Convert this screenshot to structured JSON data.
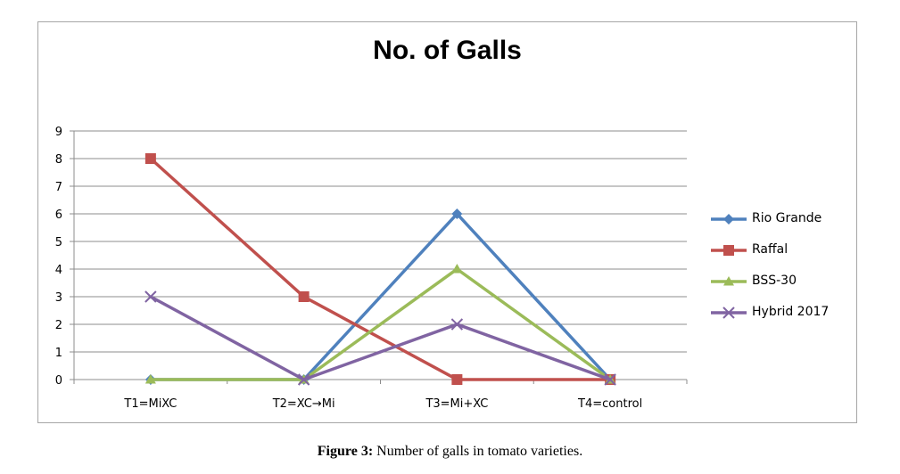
{
  "chart_data": {
    "type": "line",
    "title": "No. of Galls",
    "categories": [
      "T1=MiXC",
      "T2=XC→Mi",
      "T3=Mi+XC",
      "T4=control"
    ],
    "ylim": [
      0,
      9
    ],
    "yticks": [
      0,
      1,
      2,
      3,
      4,
      5,
      6,
      7,
      8,
      9
    ],
    "grid": true,
    "legend_position": "right",
    "series": [
      {
        "name": "Rio Grande",
        "values": [
          0,
          0,
          6,
          0
        ],
        "color": "#4f81bd",
        "marker": "diamond"
      },
      {
        "name": "Raffal",
        "values": [
          8,
          3,
          0,
          0
        ],
        "color": "#c0504d",
        "marker": "square"
      },
      {
        "name": "BSS-30",
        "values": [
          0,
          0,
          4,
          0
        ],
        "color": "#9bbb59",
        "marker": "triangle"
      },
      {
        "name": "Hybrid 2017",
        "values": [
          3,
          0,
          2,
          0
        ],
        "color": "#8064a2",
        "marker": "x"
      }
    ]
  },
  "caption": {
    "label": "Figure 3:",
    "text": " Number of galls in tomato varieties."
  }
}
